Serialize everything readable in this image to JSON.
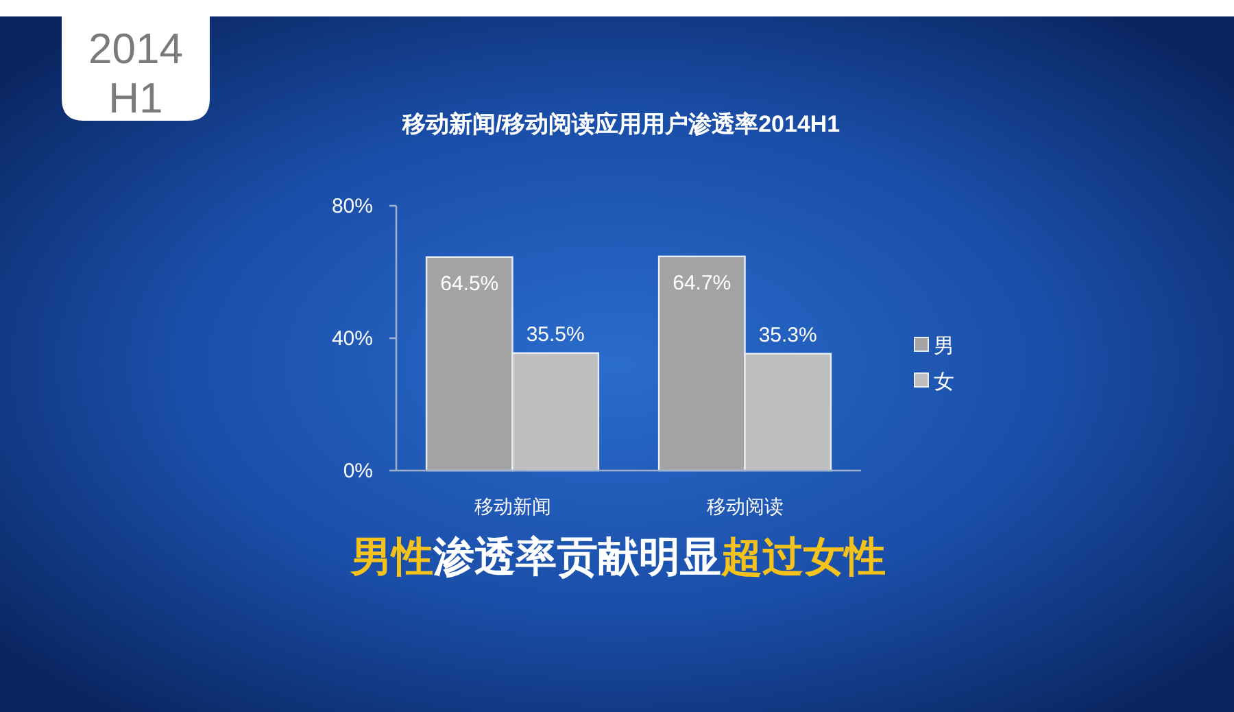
{
  "chart_data": {
    "type": "bar",
    "title": "移动新闻/移动阅读应用用户渗透率2014H1",
    "annotations": [
      "2014 H1",
      "**男性**渗透率贡献明显**超过女性**"
    ],
    "categories": [
      "移动新闻",
      "移动阅读"
    ],
    "series": [
      {
        "name": "男",
        "color": "#a3a3a3",
        "values": [
          64.5,
          64.7
        ],
        "value_labels": [
          "64.5%",
          "64.7%"
        ]
      },
      {
        "name": "女",
        "color": "#bebebe",
        "values": [
          35.5,
          35.3
        ],
        "value_labels": [
          "35.5%",
          "35.3%"
        ]
      }
    ],
    "ylim": [
      0,
      80
    ],
    "yticks": [
      {
        "value": 0,
        "label": "0%"
      },
      {
        "value": 40,
        "label": "40%"
      },
      {
        "value": 80,
        "label": "80%"
      }
    ],
    "grid": false,
    "legend": "right"
  }
}
